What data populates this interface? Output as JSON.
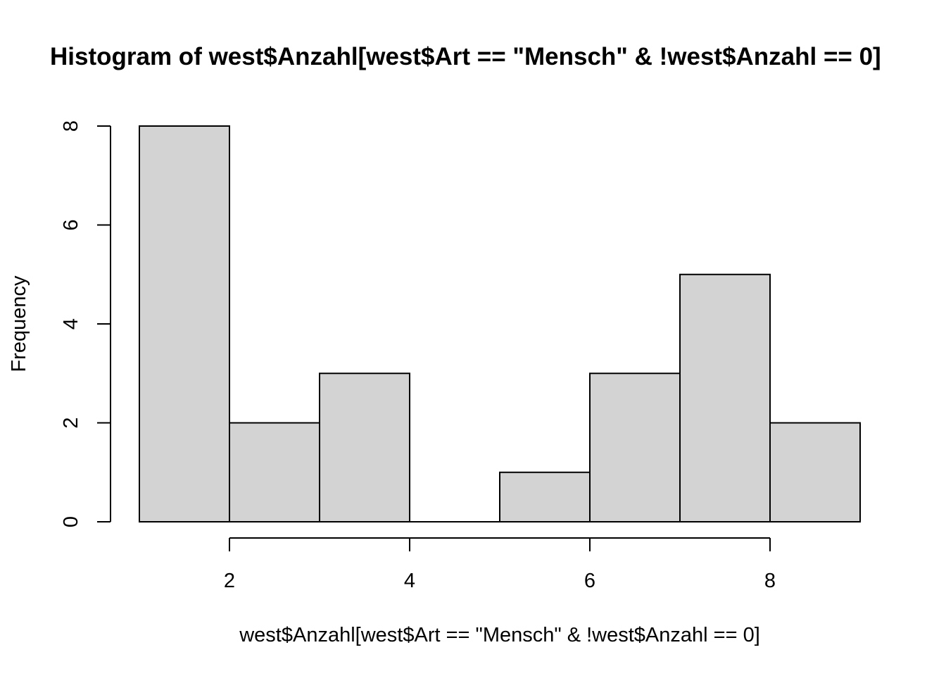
{
  "chart_data": {
    "type": "bar",
    "subtype": "histogram",
    "title": "Histogram of west$Anzahl[west$Art == \"Mensch\" & !west$Anzahl == 0]",
    "xlabel": "west$Anzahl[west$Art == \"Mensch\" & !west$Anzahl == 0]",
    "ylabel": "Frequency",
    "bins": [
      {
        "x0": 1,
        "x1": 2,
        "count": 8
      },
      {
        "x0": 2,
        "x1": 3,
        "count": 2
      },
      {
        "x0": 3,
        "x1": 4,
        "count": 3
      },
      {
        "x0": 4,
        "x1": 5,
        "count": 0
      },
      {
        "x0": 5,
        "x1": 6,
        "count": 1
      },
      {
        "x0": 6,
        "x1": 7,
        "count": 3
      },
      {
        "x0": 7,
        "x1": 8,
        "count": 5
      },
      {
        "x0": 8,
        "x1": 9,
        "count": 2
      }
    ],
    "xlim": [
      1,
      9
    ],
    "ylim": [
      0,
      8
    ],
    "xticks": [
      2,
      4,
      6,
      8
    ],
    "yticks": [
      0,
      2,
      4,
      6,
      8
    ],
    "grid": false,
    "bar_fill": "#d3d3d3",
    "bar_stroke": "#000000"
  }
}
